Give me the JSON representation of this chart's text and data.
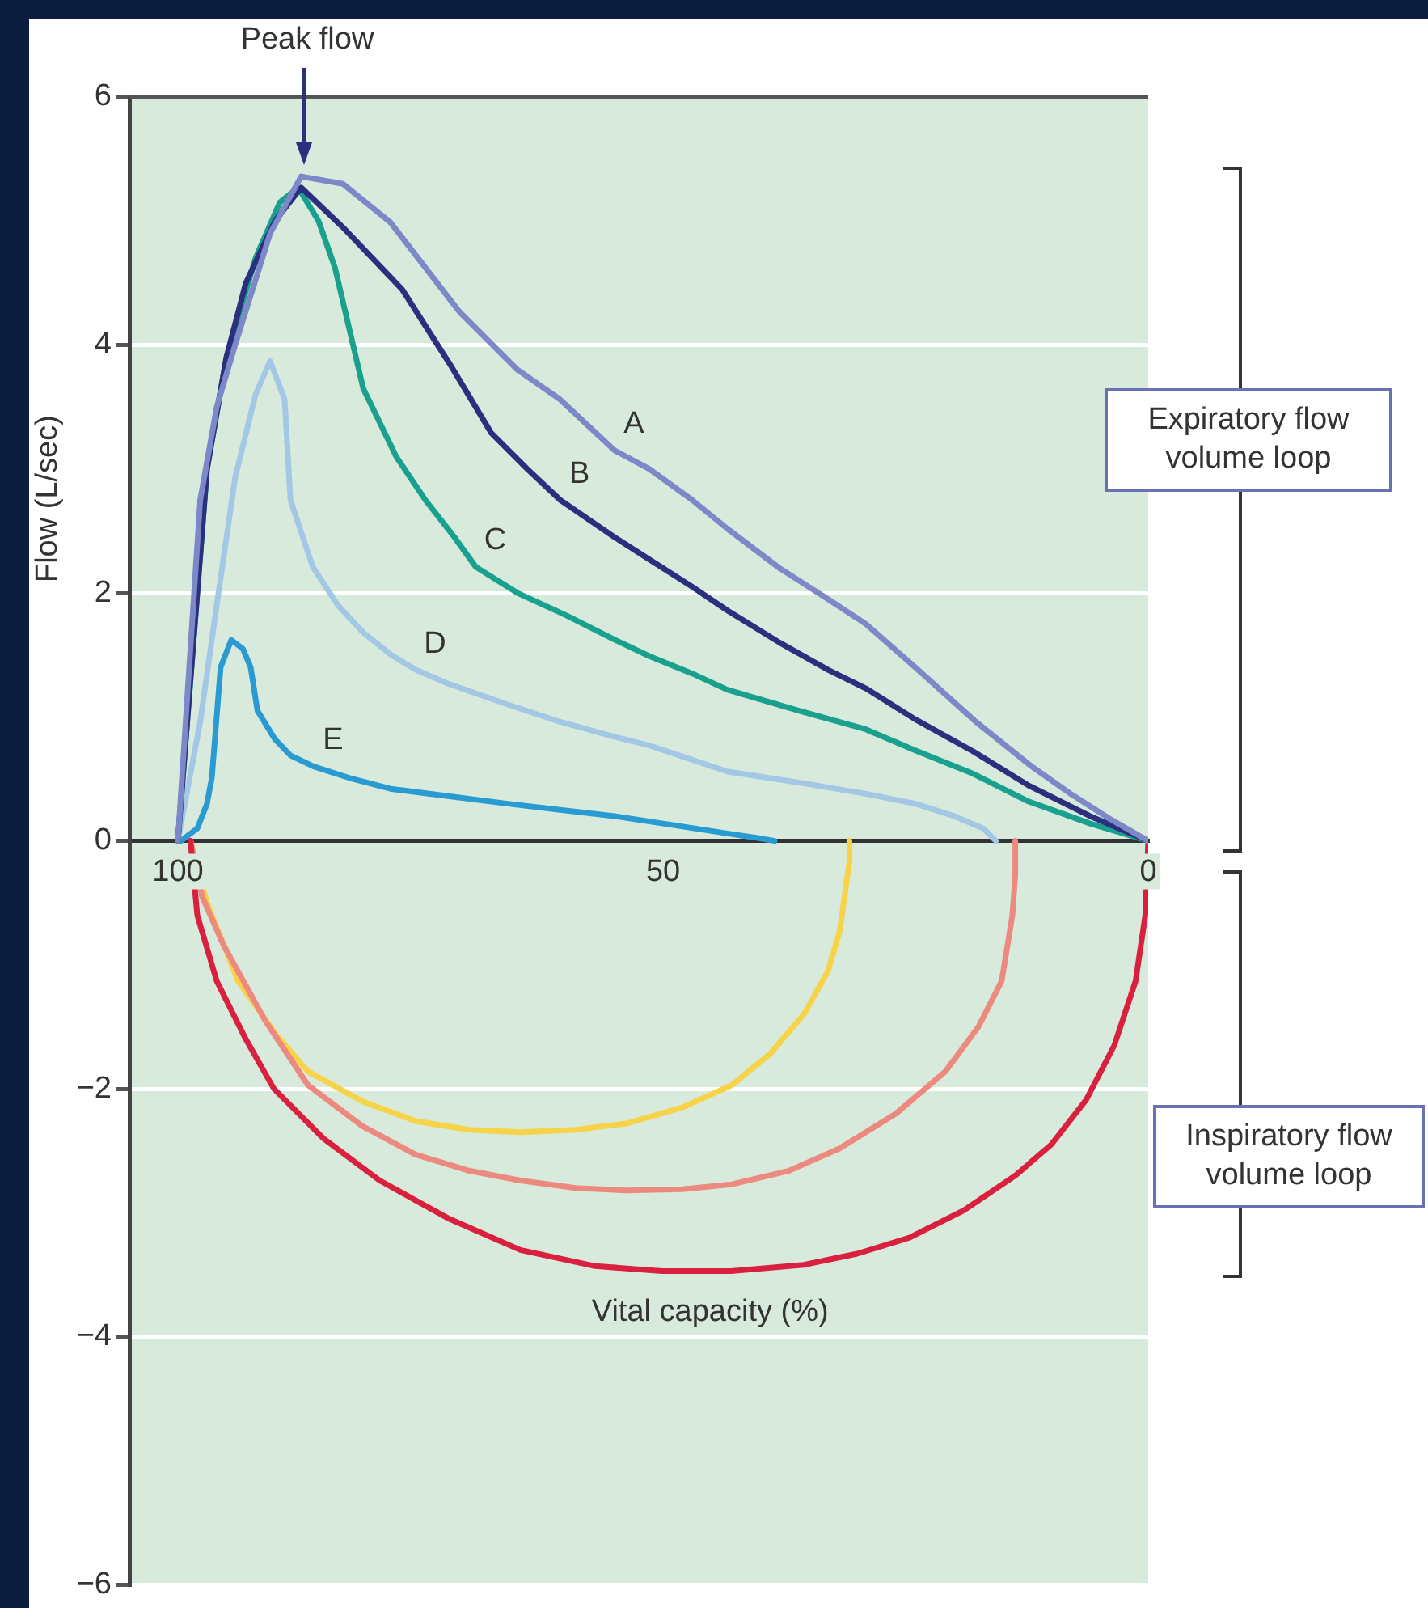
{
  "chart_data": {
    "type": "line",
    "xlabel": "Vital capacity (%)",
    "ylabel": "Flow (L/sec)",
    "xlim": [
      105,
      0
    ],
    "xticks": [
      100,
      50,
      0
    ],
    "ylim": [
      -6,
      6
    ],
    "yticks": [
      {
        "value": -6,
        "label": "−6"
      },
      {
        "value": -4,
        "label": "−4"
      },
      {
        "value": -2,
        "label": "−2"
      },
      0,
      2,
      4,
      6
    ],
    "grid": "y",
    "legend": false,
    "marker": "none",
    "annotations": [
      "Peak flow",
      "Expiratory flow volume loop",
      "Inspiratory flow volume loop"
    ],
    "series": [
      {
        "name": "A",
        "color": "#7d88c8",
        "x": [
          100,
          99,
          97.7,
          96,
          94.1,
          90.5,
          87.3,
          83,
          78.1,
          71,
          65,
          60.6,
          55,
          51.4,
          47,
          43.4,
          38,
          33,
          29.1,
          24,
          17.9,
          12,
          8,
          4,
          0
        ],
        "values": [
          0,
          1.2,
          2.75,
          3.5,
          4.0,
          4.9,
          5.36,
          5.3,
          4.99,
          4.27,
          3.8,
          3.56,
          3.15,
          3.0,
          2.75,
          2.52,
          2.2,
          1.95,
          1.75,
          1.4,
          0.97,
          0.6,
          0.38,
          0.18,
          0
        ]
      },
      {
        "name": "B",
        "color": "#2b2f7e",
        "x": [
          100,
          98.5,
          97,
          95,
          93,
          90,
          87.3,
          83,
          76.9,
          72,
          67.7,
          64,
          60.6,
          55,
          51.4,
          47,
          43.4,
          38,
          33,
          29.1,
          24,
          18,
          12.4,
          6,
          0
        ],
        "values": [
          0,
          1.5,
          3.0,
          3.9,
          4.5,
          5.0,
          5.27,
          4.95,
          4.45,
          3.85,
          3.29,
          3.0,
          2.75,
          2.45,
          2.27,
          2.05,
          1.86,
          1.6,
          1.38,
          1.23,
          0.98,
          0.72,
          0.45,
          0.2,
          0
        ]
      },
      {
        "name": "C",
        "color": "#1aa08e",
        "x": [
          100,
          98.5,
          97,
          95,
          92,
          89.5,
          87.6,
          85.5,
          83.8,
          80.9,
          77.5,
          74.5,
          71.5,
          69.3,
          65,
          60,
          54.9,
          51.4,
          47,
          43.4,
          36,
          29.1,
          24,
          18,
          12.4,
          6,
          0
        ],
        "values": [
          0,
          1.5,
          3.0,
          3.9,
          4.7,
          5.15,
          5.27,
          5.0,
          4.62,
          3.65,
          3.1,
          2.75,
          2.45,
          2.21,
          2.0,
          1.82,
          1.62,
          1.49,
          1.35,
          1.22,
          1.05,
          0.9,
          0.73,
          0.54,
          0.32,
          0.14,
          0
        ]
      },
      {
        "name": "D",
        "color": "#a3c8e6",
        "x": [
          100,
          97.7,
          96,
          94.1,
          92,
          90.5,
          89,
          88.4,
          86.1,
          83.5,
          80.9,
          78,
          75.5,
          72.2,
          66,
          60.6,
          55,
          51.4,
          43.4,
          36,
          29.1,
          24,
          20,
          17,
          15.7
        ],
        "values": [
          0,
          0.96,
          1.9,
          2.93,
          3.6,
          3.87,
          3.56,
          2.75,
          2.21,
          1.9,
          1.68,
          1.5,
          1.38,
          1.27,
          1.1,
          0.96,
          0.84,
          0.77,
          0.56,
          0.47,
          0.38,
          0.3,
          0.2,
          0.1,
          0
        ]
      },
      {
        "name": "E",
        "color": "#2a9ad2",
        "x": [
          99.7,
          98,
          97,
          96.5,
          95.6,
          94.5,
          93.3,
          92.5,
          91.8,
          90,
          88.4,
          86,
          82,
          78.1,
          72,
          66,
          60.6,
          55,
          50,
          45,
          43.4,
          40,
          38.5
        ],
        "values": [
          0,
          0.1,
          0.3,
          0.51,
          1.4,
          1.62,
          1.55,
          1.4,
          1.05,
          0.82,
          0.69,
          0.6,
          0.5,
          0.42,
          0.36,
          0.3,
          0.25,
          0.2,
          0.14,
          0.08,
          0.06,
          0.02,
          0
        ]
      },
      {
        "color": "#d9203f",
        "x": [
          98.7,
          98,
          96,
          93,
          90.1,
          85,
          79.2,
          72,
          64.7,
          57,
          50.1,
          43,
          35.5,
          30,
          24.6,
          19,
          13.7,
          10,
          6.4,
          3.5,
          1.3,
          0.3,
          0
        ],
        "values": [
          0,
          -0.6,
          -1.13,
          -1.6,
          -2.0,
          -2.4,
          -2.74,
          -3.05,
          -3.3,
          -3.43,
          -3.47,
          -3.47,
          -3.42,
          -3.33,
          -3.2,
          -2.98,
          -2.7,
          -2.45,
          -2.09,
          -1.65,
          -1.13,
          -0.6,
          0
        ]
      },
      {
        "color": "#ec8a80",
        "x": [
          98.7,
          97.5,
          95.3,
          91,
          86.6,
          81,
          75.5,
          70,
          64.7,
          59,
          53.8,
          48,
          42.9,
          37,
          31.8,
          26,
          20.9,
          17.5,
          15.1,
          14,
          13.7,
          13.7
        ],
        "values": [
          0,
          -0.45,
          -0.84,
          -1.45,
          -1.97,
          -2.3,
          -2.53,
          -2.66,
          -2.74,
          -2.8,
          -2.82,
          -2.81,
          -2.77,
          -2.66,
          -2.48,
          -2.2,
          -1.86,
          -1.5,
          -1.13,
          -0.6,
          -0.27,
          0
        ]
      },
      {
        "color": "#f7d34a",
        "x": [
          98.7,
          97,
          93.8,
          90,
          86.6,
          81,
          75.5,
          70,
          64.7,
          59,
          53.8,
          48,
          42.9,
          39,
          35.5,
          33,
          31.8,
          30.8,
          30.8
        ],
        "values": [
          0,
          -0.5,
          -1.13,
          -1.55,
          -1.86,
          -2.1,
          -2.26,
          -2.33,
          -2.35,
          -2.33,
          -2.28,
          -2.15,
          -1.97,
          -1.72,
          -1.4,
          -1.05,
          -0.73,
          -0.17,
          0
        ]
      }
    ]
  }
}
